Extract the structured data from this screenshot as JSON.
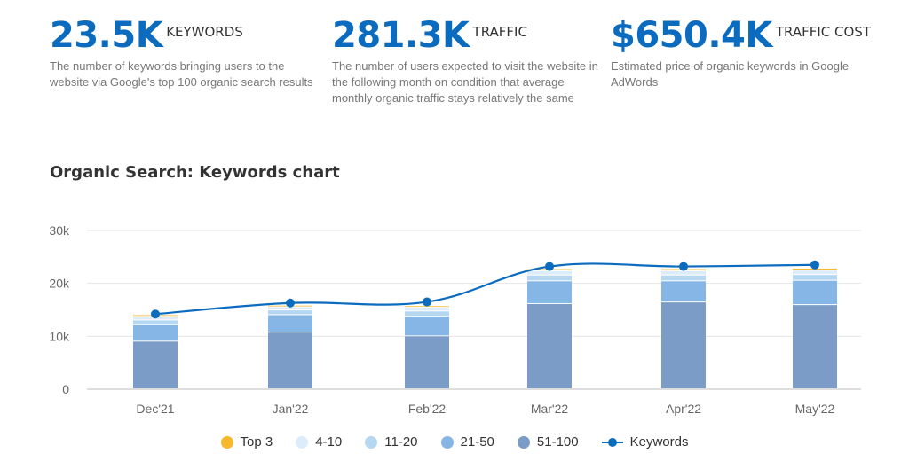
{
  "metrics": [
    {
      "value": "23.5K",
      "label": "KEYWORDS",
      "desc": "The number of keywords bringing users to the website via Google's top 100 organic search results"
    },
    {
      "value": "281.3K",
      "label": "TRAFFIC",
      "desc": "The number of users expected to visit the website in the following month on condition that average monthly organic traffic stays relatively the same"
    },
    {
      "value": "$650.4K",
      "label": "TRAFFIC COST",
      "desc": "Estimated price of organic keywords in Google AdWords"
    }
  ],
  "chart_data": {
    "type": "bar",
    "stacked": true,
    "title": "Organic Search: Keywords chart",
    "categories": [
      "Dec'21",
      "Jan'22",
      "Feb'22",
      "Mar'22",
      "Apr'22",
      "May'22"
    ],
    "ylim": [
      0,
      30000
    ],
    "yticks": [
      0,
      10000,
      20000,
      30000
    ],
    "ytick_labels": [
      "0",
      "10k",
      "20k",
      "30k"
    ],
    "grid": true,
    "legend_position": "bottom",
    "series": [
      {
        "name": "51-100",
        "color": "#7a9cc6",
        "values": [
          9000,
          10700,
          10000,
          16100,
          16400,
          15900
        ]
      },
      {
        "name": "21-50",
        "color": "#85b6e6",
        "values": [
          3100,
          3300,
          3700,
          4300,
          4000,
          4600
        ]
      },
      {
        "name": "11-20",
        "color": "#b5d7f2",
        "values": [
          900,
          900,
          1000,
          1100,
          1100,
          1100
        ]
      },
      {
        "name": "4-10",
        "color": "#dcecfa",
        "values": [
          700,
          600,
          700,
          800,
          800,
          800
        ]
      },
      {
        "name": "Top 3",
        "color": "#f6b82c",
        "values": [
          300,
          300,
          300,
          400,
          400,
          400
        ]
      }
    ],
    "line": {
      "name": "Keywords",
      "color": "#0b6bbf",
      "values": [
        14200,
        16300,
        16500,
        23200,
        23200,
        23500
      ]
    }
  },
  "legend": [
    {
      "label": "Top 3",
      "color": "#f6b82c",
      "kind": "dot"
    },
    {
      "label": "4-10",
      "color": "#dcecfa",
      "kind": "dot"
    },
    {
      "label": "11-20",
      "color": "#b5d7f2",
      "kind": "dot"
    },
    {
      "label": "21-50",
      "color": "#85b6e6",
      "kind": "dot"
    },
    {
      "label": "51-100",
      "color": "#7a9cc6",
      "kind": "dot"
    },
    {
      "label": "Keywords",
      "color": "#0b6bbf",
      "kind": "line"
    }
  ]
}
